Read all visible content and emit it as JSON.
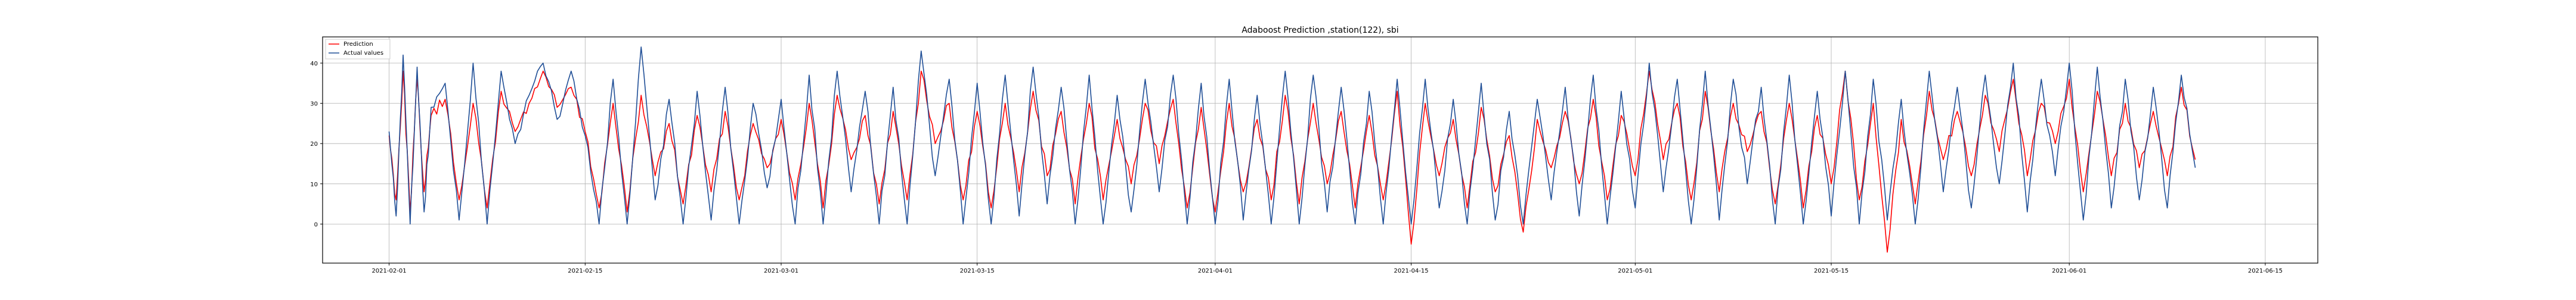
{
  "chart_data": {
    "type": "line",
    "title": "Adaboost Prediction ,station(122), sbi",
    "xlabel": "",
    "ylabel": "",
    "grid": true,
    "legend_position": "upper-left",
    "x_range": [
      "2021-01-27T06:00",
      "2021-06-18T18:00"
    ],
    "ylim": [
      -9.7,
      46.5
    ],
    "x_ticks": [
      "2021-02-01",
      "2021-02-15",
      "2021-03-01",
      "2021-03-15",
      "2021-04-01",
      "2021-04-15",
      "2021-05-01",
      "2021-05-15",
      "2021-06-01",
      "2021-06-15"
    ],
    "y_ticks": [
      0,
      10,
      20,
      30,
      40
    ],
    "data_range": [
      "2021-02-01",
      "2021-06-10"
    ],
    "series": [
      {
        "name": "Prediction",
        "color": "#ff0000",
        "points": [
          [
            "2021-02-01",
            22
          ],
          [
            "2021-02-01T12:00",
            6
          ],
          [
            "2021-02-02",
            38
          ],
          [
            "2021-02-02T12:00",
            3
          ],
          [
            "2021-02-03",
            36
          ],
          [
            "2021-02-03T12:00",
            8
          ],
          [
            "2021-02-04",
            27
          ],
          [
            "2021-02-05",
            31
          ],
          [
            "2021-02-06",
            6
          ],
          [
            "2021-02-07",
            30
          ],
          [
            "2021-02-08",
            4
          ],
          [
            "2021-02-09",
            33
          ],
          [
            "2021-02-10",
            23
          ],
          [
            "2021-02-11",
            30
          ],
          [
            "2021-02-12",
            38
          ],
          [
            "2021-02-13",
            29
          ],
          [
            "2021-02-14",
            34
          ],
          [
            "2021-02-15",
            23
          ],
          [
            "2021-02-16",
            4
          ],
          [
            "2021-02-17",
            30
          ],
          [
            "2021-02-18",
            3
          ],
          [
            "2021-02-19",
            32
          ],
          [
            "2021-02-20",
            12
          ],
          [
            "2021-02-21",
            25
          ],
          [
            "2021-02-22",
            5
          ],
          [
            "2021-02-23",
            27
          ],
          [
            "2021-02-24",
            8
          ],
          [
            "2021-02-25",
            28
          ],
          [
            "2021-02-26",
            6
          ],
          [
            "2021-02-27",
            25
          ],
          [
            "2021-02-28",
            14
          ],
          [
            "2021-03-01",
            26
          ],
          [
            "2021-03-02",
            6
          ],
          [
            "2021-03-03",
            30
          ],
          [
            "2021-03-04",
            4
          ],
          [
            "2021-03-05",
            32
          ],
          [
            "2021-03-06",
            16
          ],
          [
            "2021-03-07",
            27
          ],
          [
            "2021-03-08",
            5
          ],
          [
            "2021-03-09",
            28
          ],
          [
            "2021-03-10",
            6
          ],
          [
            "2021-03-11",
            38
          ],
          [
            "2021-03-12",
            20
          ],
          [
            "2021-03-13",
            30
          ],
          [
            "2021-03-14",
            6
          ],
          [
            "2021-03-15",
            28
          ],
          [
            "2021-03-16",
            4
          ],
          [
            "2021-03-17",
            30
          ],
          [
            "2021-03-18",
            8
          ],
          [
            "2021-03-19",
            33
          ],
          [
            "2021-03-20",
            12
          ],
          [
            "2021-03-21",
            28
          ],
          [
            "2021-03-22",
            5
          ],
          [
            "2021-03-23",
            30
          ],
          [
            "2021-03-24",
            6
          ],
          [
            "2021-03-25",
            26
          ],
          [
            "2021-03-26",
            10
          ],
          [
            "2021-03-27",
            30
          ],
          [
            "2021-03-28",
            15
          ],
          [
            "2021-03-29",
            31
          ],
          [
            "2021-03-30",
            4
          ],
          [
            "2021-03-31",
            29
          ],
          [
            "2021-04-01",
            3
          ],
          [
            "2021-04-02",
            30
          ],
          [
            "2021-04-03",
            8
          ],
          [
            "2021-04-04",
            26
          ],
          [
            "2021-04-05",
            6
          ],
          [
            "2021-04-06",
            32
          ],
          [
            "2021-04-07",
            5
          ],
          [
            "2021-04-08",
            30
          ],
          [
            "2021-04-09",
            10
          ],
          [
            "2021-04-10",
            28
          ],
          [
            "2021-04-11",
            4
          ],
          [
            "2021-04-12",
            27
          ],
          [
            "2021-04-13",
            6
          ],
          [
            "2021-04-14",
            33
          ],
          [
            "2021-04-15",
            -5
          ],
          [
            "2021-04-16",
            30
          ],
          [
            "2021-04-17",
            12
          ],
          [
            "2021-04-18",
            26
          ],
          [
            "2021-04-19",
            4
          ],
          [
            "2021-04-20",
            29
          ],
          [
            "2021-04-21",
            8
          ],
          [
            "2021-04-22",
            22
          ],
          [
            "2021-04-23",
            -2
          ],
          [
            "2021-04-24",
            26
          ],
          [
            "2021-04-25",
            14
          ],
          [
            "2021-04-26",
            28
          ],
          [
            "2021-04-27",
            10
          ],
          [
            "2021-04-28",
            31
          ],
          [
            "2021-04-29",
            6
          ],
          [
            "2021-04-30",
            27
          ],
          [
            "2021-05-01",
            12
          ],
          [
            "2021-05-02",
            38
          ],
          [
            "2021-05-03",
            16
          ],
          [
            "2021-05-04",
            30
          ],
          [
            "2021-05-05",
            6
          ],
          [
            "2021-05-06",
            33
          ],
          [
            "2021-05-07",
            8
          ],
          [
            "2021-05-08",
            30
          ],
          [
            "2021-05-09",
            18
          ],
          [
            "2021-05-10",
            28
          ],
          [
            "2021-05-11",
            5
          ],
          [
            "2021-05-12",
            30
          ],
          [
            "2021-05-13",
            4
          ],
          [
            "2021-05-14",
            27
          ],
          [
            "2021-05-15",
            10
          ],
          [
            "2021-05-16",
            38
          ],
          [
            "2021-05-17",
            6
          ],
          [
            "2021-05-18",
            30
          ],
          [
            "2021-05-19",
            -7
          ],
          [
            "2021-05-20",
            26
          ],
          [
            "2021-05-21",
            5
          ],
          [
            "2021-05-22",
            33
          ],
          [
            "2021-05-23",
            16
          ],
          [
            "2021-05-24",
            28
          ],
          [
            "2021-05-25",
            12
          ],
          [
            "2021-05-26",
            32
          ],
          [
            "2021-05-27",
            18
          ],
          [
            "2021-05-28",
            36
          ],
          [
            "2021-05-29",
            12
          ],
          [
            "2021-05-30",
            30
          ],
          [
            "2021-05-31",
            20
          ],
          [
            "2021-06-01",
            36
          ],
          [
            "2021-06-02",
            8
          ],
          [
            "2021-06-03",
            33
          ],
          [
            "2021-06-04",
            12
          ],
          [
            "2021-06-05",
            30
          ],
          [
            "2021-06-06",
            14
          ],
          [
            "2021-06-07",
            28
          ],
          [
            "2021-06-08",
            12
          ],
          [
            "2021-06-09",
            34
          ],
          [
            "2021-06-10",
            16
          ]
        ]
      },
      {
        "name": "Actual values",
        "color": "#1f4e96",
        "points": [
          [
            "2021-02-01",
            23
          ],
          [
            "2021-02-01T12:00",
            2
          ],
          [
            "2021-02-02",
            42
          ],
          [
            "2021-02-02T12:00",
            0
          ],
          [
            "2021-02-03",
            39
          ],
          [
            "2021-02-03T12:00",
            3
          ],
          [
            "2021-02-04",
            29
          ],
          [
            "2021-02-05",
            35
          ],
          [
            "2021-02-06",
            1
          ],
          [
            "2021-02-07",
            40
          ],
          [
            "2021-02-08",
            0
          ],
          [
            "2021-02-09",
            38
          ],
          [
            "2021-02-10",
            20
          ],
          [
            "2021-02-11",
            32
          ],
          [
            "2021-02-12",
            40
          ],
          [
            "2021-02-13",
            26
          ],
          [
            "2021-02-14",
            38
          ],
          [
            "2021-02-15",
            22
          ],
          [
            "2021-02-16",
            0
          ],
          [
            "2021-02-17",
            36
          ],
          [
            "2021-02-18",
            0
          ],
          [
            "2021-02-19",
            44
          ],
          [
            "2021-02-20",
            6
          ],
          [
            "2021-02-21",
            31
          ],
          [
            "2021-02-22",
            0
          ],
          [
            "2021-02-23",
            33
          ],
          [
            "2021-02-24",
            1
          ],
          [
            "2021-02-25",
            34
          ],
          [
            "2021-02-26",
            0
          ],
          [
            "2021-02-27",
            30
          ],
          [
            "2021-02-28",
            9
          ],
          [
            "2021-03-01",
            31
          ],
          [
            "2021-03-02",
            0
          ],
          [
            "2021-03-03",
            37
          ],
          [
            "2021-03-04",
            0
          ],
          [
            "2021-03-05",
            38
          ],
          [
            "2021-03-06",
            8
          ],
          [
            "2021-03-07",
            33
          ],
          [
            "2021-03-08",
            0
          ],
          [
            "2021-03-09",
            34
          ],
          [
            "2021-03-10",
            0
          ],
          [
            "2021-03-11",
            43
          ],
          [
            "2021-03-12",
            12
          ],
          [
            "2021-03-13",
            36
          ],
          [
            "2021-03-14",
            0
          ],
          [
            "2021-03-15",
            35
          ],
          [
            "2021-03-16",
            0
          ],
          [
            "2021-03-17",
            37
          ],
          [
            "2021-03-18",
            2
          ],
          [
            "2021-03-19",
            39
          ],
          [
            "2021-03-20",
            5
          ],
          [
            "2021-03-21",
            34
          ],
          [
            "2021-03-22",
            0
          ],
          [
            "2021-03-23",
            37
          ],
          [
            "2021-03-24",
            0
          ],
          [
            "2021-03-25",
            32
          ],
          [
            "2021-03-26",
            3
          ],
          [
            "2021-03-27",
            36
          ],
          [
            "2021-03-28",
            8
          ],
          [
            "2021-03-29",
            37
          ],
          [
            "2021-03-30",
            0
          ],
          [
            "2021-03-31",
            35
          ],
          [
            "2021-04-01",
            0
          ],
          [
            "2021-04-02",
            36
          ],
          [
            "2021-04-03",
            1
          ],
          [
            "2021-04-04",
            32
          ],
          [
            "2021-04-05",
            0
          ],
          [
            "2021-04-06",
            38
          ],
          [
            "2021-04-07",
            0
          ],
          [
            "2021-04-08",
            37
          ],
          [
            "2021-04-09",
            3
          ],
          [
            "2021-04-10",
            34
          ],
          [
            "2021-04-11",
            0
          ],
          [
            "2021-04-12",
            33
          ],
          [
            "2021-04-13",
            0
          ],
          [
            "2021-04-14",
            36
          ],
          [
            "2021-04-15",
            0
          ],
          [
            "2021-04-16",
            36
          ],
          [
            "2021-04-17",
            4
          ],
          [
            "2021-04-18",
            31
          ],
          [
            "2021-04-19",
            0
          ],
          [
            "2021-04-20",
            35
          ],
          [
            "2021-04-21",
            1
          ],
          [
            "2021-04-22",
            28
          ],
          [
            "2021-04-23",
            0
          ],
          [
            "2021-04-24",
            31
          ],
          [
            "2021-04-25",
            6
          ],
          [
            "2021-04-26",
            34
          ],
          [
            "2021-04-27",
            2
          ],
          [
            "2021-04-28",
            37
          ],
          [
            "2021-04-29",
            0
          ],
          [
            "2021-04-30",
            33
          ],
          [
            "2021-05-01",
            4
          ],
          [
            "2021-05-02",
            40
          ],
          [
            "2021-05-03",
            8
          ],
          [
            "2021-05-04",
            36
          ],
          [
            "2021-05-05",
            0
          ],
          [
            "2021-05-06",
            38
          ],
          [
            "2021-05-07",
            1
          ],
          [
            "2021-05-08",
            36
          ],
          [
            "2021-05-09",
            10
          ],
          [
            "2021-05-10",
            34
          ],
          [
            "2021-05-11",
            0
          ],
          [
            "2021-05-12",
            37
          ],
          [
            "2021-05-13",
            0
          ],
          [
            "2021-05-14",
            33
          ],
          [
            "2021-05-15",
            2
          ],
          [
            "2021-05-16",
            38
          ],
          [
            "2021-05-17",
            0
          ],
          [
            "2021-05-18",
            36
          ],
          [
            "2021-05-19",
            1
          ],
          [
            "2021-05-20",
            31
          ],
          [
            "2021-05-21",
            0
          ],
          [
            "2021-05-22",
            38
          ],
          [
            "2021-05-23",
            8
          ],
          [
            "2021-05-24",
            34
          ],
          [
            "2021-05-25",
            4
          ],
          [
            "2021-05-26",
            37
          ],
          [
            "2021-05-27",
            10
          ],
          [
            "2021-05-28",
            40
          ],
          [
            "2021-05-29",
            3
          ],
          [
            "2021-05-30",
            36
          ],
          [
            "2021-05-31",
            12
          ],
          [
            "2021-06-01",
            40
          ],
          [
            "2021-06-02",
            1
          ],
          [
            "2021-06-03",
            39
          ],
          [
            "2021-06-04",
            4
          ],
          [
            "2021-06-05",
            36
          ],
          [
            "2021-06-06",
            6
          ],
          [
            "2021-06-07",
            34
          ],
          [
            "2021-06-08",
            4
          ],
          [
            "2021-06-09",
            37
          ],
          [
            "2021-06-10",
            14
          ]
        ]
      }
    ]
  }
}
